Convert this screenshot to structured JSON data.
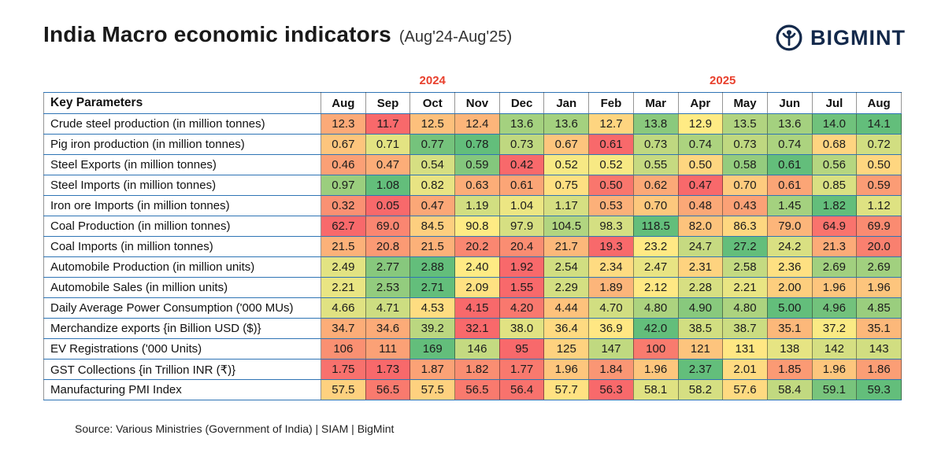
{
  "header": {
    "title": "India Macro economic indicators",
    "subtitle": "(Aug'24-Aug'25)",
    "brand": "BIGMINT"
  },
  "table": {
    "key_parameters_label": "Key Parameters",
    "year_groups": [
      {
        "label": "2024",
        "span": 5
      },
      {
        "label": "2025",
        "span": 8
      }
    ],
    "months": [
      "Aug",
      "Sep",
      "Oct",
      "Nov",
      "Dec",
      "Jan",
      "Feb",
      "Mar",
      "Apr",
      "May",
      "Jun",
      "Jul",
      "Aug"
    ]
  },
  "footer": {
    "source": "Source: Various Ministries (Government of India)  |  SIAM  |  BigMint"
  },
  "colors": {
    "scale_low": "#F8696B",
    "scale_mid": "#FFEB84",
    "scale_high": "#63BE7B",
    "year_label": "#e8402d",
    "border_blue": "#2e74b5",
    "brand_navy": "#13294b"
  },
  "chart_data": {
    "type": "heatmap",
    "title": "India Macro economic indicators (Aug'24-Aug'25)",
    "x": [
      "Aug'24",
      "Sep'24",
      "Oct'24",
      "Nov'24",
      "Dec'24",
      "Jan'25",
      "Feb'25",
      "Mar'25",
      "Apr'25",
      "May'25",
      "Jun'25",
      "Jul'25",
      "Aug'25"
    ],
    "colorscale": "row-wise red-yellow-green, min=red max=green",
    "legend_position": "none",
    "series": [
      {
        "name": "Crude steel production (in million tonnes)",
        "values": [
          "12.3",
          "11.7",
          "12.5",
          "12.4",
          "13.6",
          "13.6",
          "12.7",
          "13.8",
          "12.9",
          "13.5",
          "13.6",
          "14.0",
          "14.1"
        ]
      },
      {
        "name": "Pig iron production (in million tonnes)",
        "values": [
          "0.67",
          "0.71",
          "0.77",
          "0.78",
          "0.73",
          "0.67",
          "0.61",
          "0.73",
          "0.74",
          "0.73",
          "0.74",
          "0.68",
          "0.72"
        ]
      },
      {
        "name": "Steel Exports (in million tonnes)",
        "values": [
          "0.46",
          "0.47",
          "0.54",
          "0.59",
          "0.42",
          "0.52",
          "0.52",
          "0.55",
          "0.50",
          "0.58",
          "0.61",
          "0.56",
          "0.50"
        ]
      },
      {
        "name": "Steel Imports (in million tonnes)",
        "values": [
          "0.97",
          "1.08",
          "0.82",
          "0.63",
          "0.61",
          "0.75",
          "0.50",
          "0.62",
          "0.47",
          "0.70",
          "0.61",
          "0.85",
          "0.59"
        ]
      },
      {
        "name": "Iron ore Imports (in million tonnes)",
        "values": [
          "0.32",
          "0.05",
          "0.47",
          "1.19",
          "1.04",
          "1.17",
          "0.53",
          "0.70",
          "0.48",
          "0.43",
          "1.45",
          "1.82",
          "1.12"
        ]
      },
      {
        "name": "Coal Production (in million tonnes)",
        "values": [
          "62.7",
          "69.0",
          "84.5",
          "90.8",
          "97.9",
          "104.5",
          "98.3",
          "118.5",
          "82.0",
          "86.3",
          "79.0",
          "64.9",
          "69.9"
        ]
      },
      {
        "name": "Coal Imports (in million tonnes)",
        "values": [
          "21.5",
          "20.8",
          "21.5",
          "20.2",
          "20.4",
          "21.7",
          "19.3",
          "23.2",
          "24.7",
          "27.2",
          "24.2",
          "21.3",
          "20.0"
        ]
      },
      {
        "name": "Automobile Production (in million units)",
        "values": [
          "2.49",
          "2.77",
          "2.88",
          "2.40",
          "1.92",
          "2.54",
          "2.34",
          "2.47",
          "2.31",
          "2.58",
          "2.36",
          "2.69",
          "2.69"
        ]
      },
      {
        "name": "Automobile Sales (in million units)",
        "values": [
          "2.21",
          "2.53",
          "2.71",
          "2.09",
          "1.55",
          "2.29",
          "1.89",
          "2.12",
          "2.28",
          "2.21",
          "2.00",
          "1.96",
          "1.96"
        ]
      },
      {
        "name": "Daily Average Power Consumption ('000 MUs)",
        "values": [
          "4.66",
          "4.71",
          "4.53",
          "4.15",
          "4.20",
          "4.44",
          "4.70",
          "4.80",
          "4.90",
          "4.80",
          "5.00",
          "4.96",
          "4.85"
        ]
      },
      {
        "name": "Merchandize exports {in Billion USD ($)}",
        "values": [
          "34.7",
          "34.6",
          "39.2",
          "32.1",
          "38.0",
          "36.4",
          "36.9",
          "42.0",
          "38.5",
          "38.7",
          "35.1",
          "37.2",
          "35.1"
        ]
      },
      {
        "name": "EV Registrations ('000 Units)",
        "values": [
          "106",
          "111",
          "169",
          "146",
          "95",
          "125",
          "147",
          "100",
          "121",
          "131",
          "138",
          "142",
          "143"
        ]
      },
      {
        "name": "GST Collections {in Trillion INR (₹)}",
        "values": [
          "1.75",
          "1.73",
          "1.87",
          "1.82",
          "1.77",
          "1.96",
          "1.84",
          "1.96",
          "2.37",
          "2.01",
          "1.85",
          "1.96",
          "1.86"
        ]
      },
      {
        "name": "Manufacturing PMI Index",
        "values": [
          "57.5",
          "56.5",
          "57.5",
          "56.5",
          "56.4",
          "57.7",
          "56.3",
          "58.1",
          "58.2",
          "57.6",
          "58.4",
          "59.1",
          "59.3"
        ]
      }
    ]
  }
}
